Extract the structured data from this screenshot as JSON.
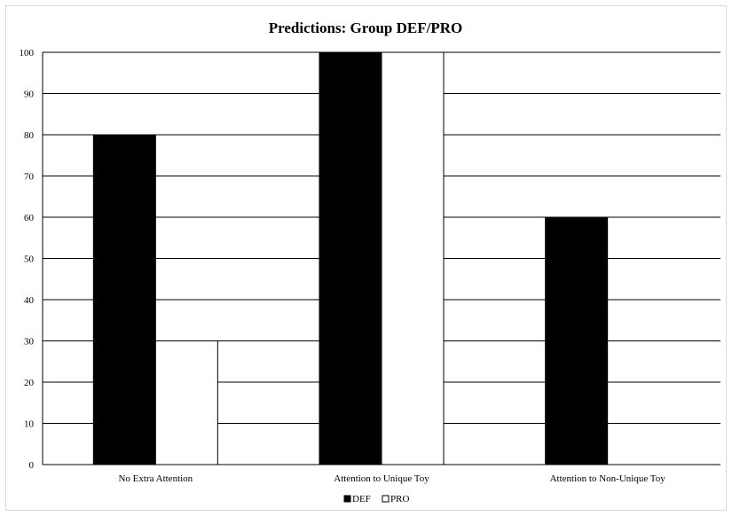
{
  "chart_data": {
    "type": "bar",
    "title": "Predictions: Group DEF/PRO",
    "categories": [
      "No Extra Attention",
      "Attention to Unique Toy",
      "Attention to Non-Unique Toy"
    ],
    "series": [
      {
        "name": "DEF",
        "values": [
          80,
          100,
          60
        ],
        "color": "#000000"
      },
      {
        "name": "PRO",
        "values": [
          30,
          100,
          0
        ],
        "color": "#ffffff"
      }
    ],
    "y_ticks": [
      "0",
      "10",
      "20",
      "30",
      "40",
      "50",
      "60",
      "70",
      "80",
      "90",
      "100"
    ],
    "ylim": [
      0,
      100
    ],
    "grid": true,
    "legend": "bottom-center"
  }
}
